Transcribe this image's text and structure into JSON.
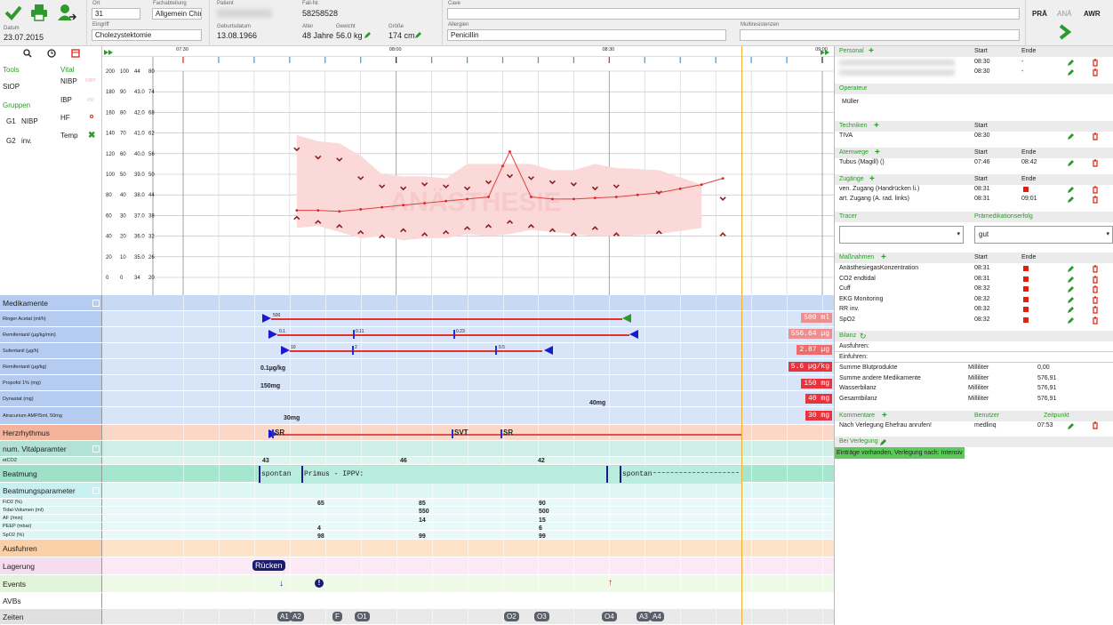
{
  "header": {
    "datum_label": "Datum",
    "datum": "23.07.2015",
    "ort_label": "Ort",
    "ort": "31",
    "fachabteilung_label": "Fachabteilung",
    "fachabteilung": "Allgemein Chir.",
    "eingriff_label": "Eingriff",
    "eingriff": "Cholezystektomie",
    "patient_label": "Patient",
    "geburtsdatum_label": "Geburtsdatum",
    "geburtsdatum": "13.08.1966",
    "fall_label": "Fall-Nr.",
    "fall": "58258528",
    "alter_label": "Alter",
    "alter": "48 Jahre",
    "gewicht_label": "Gewicht",
    "gewicht": "56.0 kg",
    "groesse_label": "Größe",
    "groesse": "174 cm",
    "cave_label": "Cave",
    "cave": "",
    "allergien_label": "Allergien",
    "allergien": "Penicillin",
    "multiresistenzen_label": "Multiresistenzen",
    "multiresistenzen": "",
    "tabs": [
      "PRÄ",
      "ANÄ",
      "AWR"
    ]
  },
  "left": {
    "tools": "Tools",
    "stop": "StOP",
    "gruppen": "Gruppen",
    "g1": "G1",
    "g1v": "NIBP",
    "g2": "G2",
    "g2v": "inv.",
    "vital": "Vital",
    "nibp": "NIBP",
    "nibp_legend": "NIBP",
    "ibp": "IBP",
    "ibp_legend": "IBP",
    "hf": "HF",
    "temp": "Temp"
  },
  "chart": {
    "times": [
      "07:30",
      "08:00",
      "08:30",
      "09:00"
    ],
    "watermark": "ANÄSTHESIE",
    "scale": [
      [
        "200",
        "100",
        "44",
        "80"
      ],
      [
        "180",
        "90",
        "43.0",
        "74"
      ],
      [
        "160",
        "80",
        "42.0",
        "68"
      ],
      [
        "140",
        "70",
        "41.0",
        "62"
      ],
      [
        "120",
        "60",
        "40.0",
        "56"
      ],
      [
        "100",
        "50",
        "39.0",
        "50"
      ],
      [
        "80",
        "40",
        "38.0",
        "44"
      ],
      [
        "60",
        "30",
        "37.0",
        "38"
      ],
      [
        "40",
        "20",
        "36.0",
        "32"
      ],
      [
        "20",
        "10",
        "35.0",
        "26"
      ],
      [
        "0",
        "0",
        "34",
        "20"
      ]
    ]
  },
  "chart_data": {
    "type": "line",
    "x": [
      "07:46",
      "07:49",
      "07:52",
      "07:55",
      "07:58",
      "08:01",
      "08:04",
      "08:07",
      "08:10",
      "08:13",
      "08:15",
      "08:16",
      "08:19",
      "08:22",
      "08:25",
      "08:28",
      "08:31",
      "08:34",
      "08:37",
      "08:40",
      "08:43",
      "08:46"
    ],
    "series": [
      {
        "name": "NIBP",
        "values": [
          65,
          65,
          64,
          66,
          68,
          70,
          72,
          74,
          76,
          78,
          108,
          122,
          78,
          76,
          76,
          77,
          78,
          80,
          82,
          86,
          90,
          96
        ]
      }
    ],
    "ylim": [
      0,
      200
    ]
  },
  "rows": {
    "medikamente": "Medikamente",
    "drugs": [
      {
        "name": "Ringer Acetat (ml/h)",
        "total": "500 ml",
        "marks": [
          "500"
        ]
      },
      {
        "name": "Remifentanil (µg/kg/min)",
        "total": "556.64 µg",
        "marks": [
          "0.1",
          "0.11",
          "0.23"
        ]
      },
      {
        "name": "Sufentanil (µg/h)",
        "total": "2.87 µg",
        "marks": [
          "10",
          "2",
          "0.5"
        ]
      },
      {
        "name": "Remifentanil (µg/kg)",
        "total": "5.6 µg/kg",
        "marks": [
          "0.1µg/kg"
        ]
      },
      {
        "name": "Propofol 1% (mg)",
        "total": "150 mg",
        "marks": [
          "150mg"
        ]
      },
      {
        "name": "Dynastat (mg)",
        "total": "40 mg",
        "marks": [
          "40mg"
        ]
      },
      {
        "name": "Atracurium AMP/5ml, 50mg",
        "total": "30 mg",
        "marks": [
          "30mg"
        ]
      }
    ],
    "herzrhythmus": "Herzrhythmus",
    "rhythm": [
      "SR",
      "SVT",
      "SR"
    ],
    "num_vital": "num. Vitalparamter",
    "etco2": "etCO2",
    "etco2_vals": [
      "43",
      "46",
      "42"
    ],
    "beatmung": "Beatmung",
    "beatmung_vals": [
      "spontan",
      "Primus - IPPV:",
      "spontan"
    ],
    "beatmungsparameter": "Beatmungsparameter",
    "params": [
      {
        "name": "FiO2 (%)",
        "vals": [
          "65",
          "85",
          "90"
        ]
      },
      {
        "name": "Tidal-Volumen (ml)",
        "vals": [
          "",
          "550",
          "500"
        ]
      },
      {
        "name": "AF (/min)",
        "vals": [
          "",
          "14",
          "15"
        ]
      },
      {
        "name": "PEEP (mbar)",
        "vals": [
          "4",
          "",
          "6"
        ]
      },
      {
        "name": "SpO2 (%)",
        "vals": [
          "98",
          "99",
          "99"
        ]
      }
    ],
    "ausfuhren": "Ausfuhren",
    "lagerung": "Lagerung",
    "lagerung_tag": "Rücken",
    "events": "Events",
    "avbs": "AVBs",
    "zeiten": "Zeiten",
    "zeiten_tags": [
      "A1",
      "A2",
      "F",
      "O1",
      "O2",
      "O3",
      "O4",
      "A3",
      "A4"
    ]
  },
  "right": {
    "personal": "Personal",
    "start": "Start",
    "ende": "Ende",
    "personal_rows": [
      {
        "start": "08:30",
        "ende": "-"
      },
      {
        "start": "08:30",
        "ende": "-"
      }
    ],
    "operateur": "Operateur",
    "operateur_name": "Müller",
    "techniken": "Techniken",
    "tech_rows": [
      {
        "name": "TIVA",
        "start": "08:30"
      }
    ],
    "atemwege": "Atemwege",
    "atem_rows": [
      {
        "name": "Tubus (Magill) ()",
        "start": "07:46",
        "ende": "08:42"
      }
    ],
    "zugaenge": "Zugänge",
    "zug_rows": [
      {
        "name": "ven. Zugang (Handrücken li.)",
        "start": "08:31"
      },
      {
        "name": "art. Zugang (A. rad. links)",
        "start": "08:31",
        "ende": "09:01"
      }
    ],
    "tracer": "Tracer",
    "praemed": "Prämedikationserfolg",
    "praemed_val": "gut",
    "massnahmen": "Maßnahmen",
    "mass_rows": [
      {
        "name": "AnästhesiegasKonzentration",
        "start": "08:31"
      },
      {
        "name": "CO2 endtidal",
        "start": "08:31"
      },
      {
        "name": "Cuff",
        "start": "08:32"
      },
      {
        "name": "EKG Monitoring",
        "start": "08:32"
      },
      {
        "name": "RR inv.",
        "start": "08:32"
      },
      {
        "name": "SpO2",
        "start": "08:32"
      }
    ],
    "bilanz": "Bilanz",
    "ausfuhren": "Ausfuhren:",
    "einfuhren": "Einfuhren:",
    "bilanz_rows": [
      {
        "name": "Summe Blutprodukte",
        "unit": "Milliliter",
        "val": "0,00"
      },
      {
        "name": "Summe andere Medikamente",
        "unit": "Milliliter",
        "val": "576,91"
      },
      {
        "name": "Wasserbilanz",
        "unit": "Milliliter",
        "val": "576,91"
      },
      {
        "name": "Gesamtbilanz",
        "unit": "Milliliter",
        "val": "576,91"
      }
    ],
    "kommentare": "Kommentare",
    "benutzer": "Benutzer",
    "zeitpunkt": "Zeitpunkt",
    "komm_text": "Nach Verlegung Ehefrau anrufen!",
    "komm_user": "medlinq",
    "komm_time": "07:53",
    "verlegung": "Bei Verlegung",
    "verlegung_text": "Einträge vorhanden, Verlegung nach: Intensiv"
  }
}
